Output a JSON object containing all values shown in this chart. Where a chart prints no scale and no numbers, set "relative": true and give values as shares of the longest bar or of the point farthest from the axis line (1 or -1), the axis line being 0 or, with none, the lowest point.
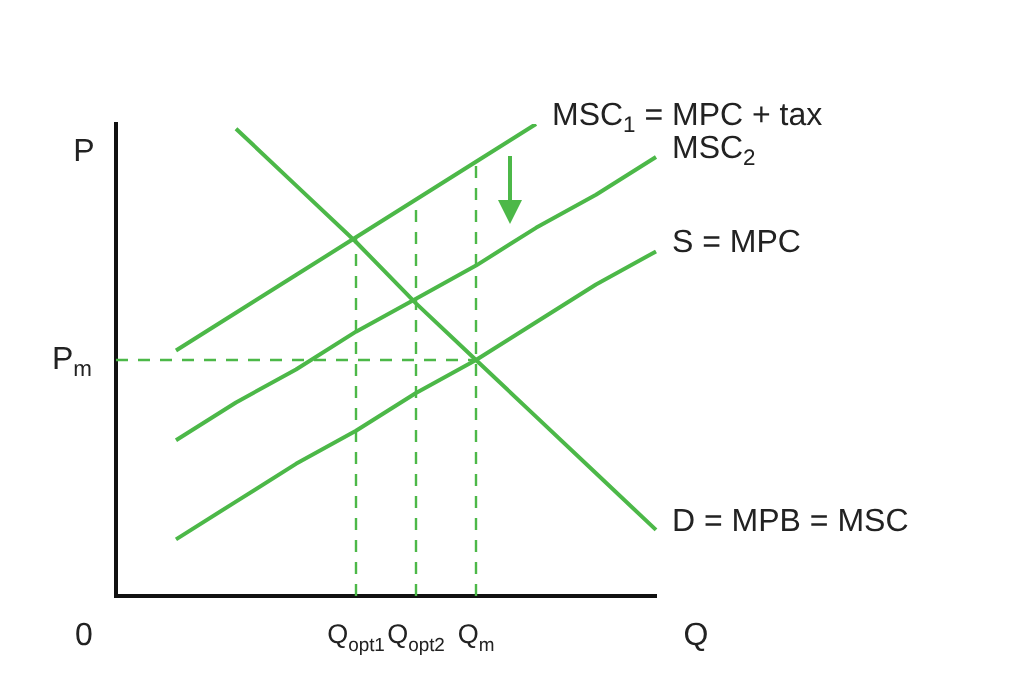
{
  "chart_data": {
    "type": "line",
    "relative": true,
    "xlabel": "Q",
    "ylabel": "P",
    "categories": [
      null,
      null,
      null,
      null,
      "Q$_{opt1}$",
      "Q$_{opt2}$",
      "Q$_{m}$",
      null,
      null,
      null
    ],
    "series": [
      {
        "name": "MSC$_{1}$ = MPC + tax",
        "color": "#4cb848",
        "values": [
          null,
          0.52,
          0.6,
          0.68,
          0.76,
          0.84,
          0.92,
          1,
          null,
          null
        ]
      },
      {
        "name": "MSC$_{2}$",
        "color": "#4cb848",
        "values": [
          null,
          0.33,
          0.41,
          0.48,
          0.56,
          0.63,
          0.7,
          0.78,
          0.85,
          0.93
        ]
      },
      {
        "name": "S = MPC",
        "color": "#4cb848",
        "values": [
          null,
          0.12,
          0.2,
          0.28,
          0.35,
          0.43,
          0.5,
          0.58,
          0.66,
          0.73
        ]
      },
      {
        "name": "D = MPB = MSC",
        "color": "#4cb848",
        "values": [
          null,
          null,
          0.99,
          0.87,
          0.75,
          0.62,
          0.5,
          0.38,
          0.26,
          0.14
        ]
      }
    ],
    "ref_lines": [
      {
        "axis": "y",
        "value": 0.5,
        "label": "P$_{m}$",
        "color": "#4cb848",
        "line_style": "dashed"
      },
      {
        "axis": "x",
        "value": "Q$_{opt1}$",
        "color": "#4cb848",
        "line_style": "dashed"
      },
      {
        "axis": "x",
        "value": "Q$_{opt2}$",
        "color": "#4cb848",
        "line_style": "dashed"
      },
      {
        "axis": "x",
        "value": "Q$_{m}$",
        "color": "#4cb848",
        "line_style": "dashed"
      }
    ],
    "annotations": [
      "0"
    ],
    "marker": "none",
    "line_style": "solid",
    "legend": false,
    "grid": false
  }
}
